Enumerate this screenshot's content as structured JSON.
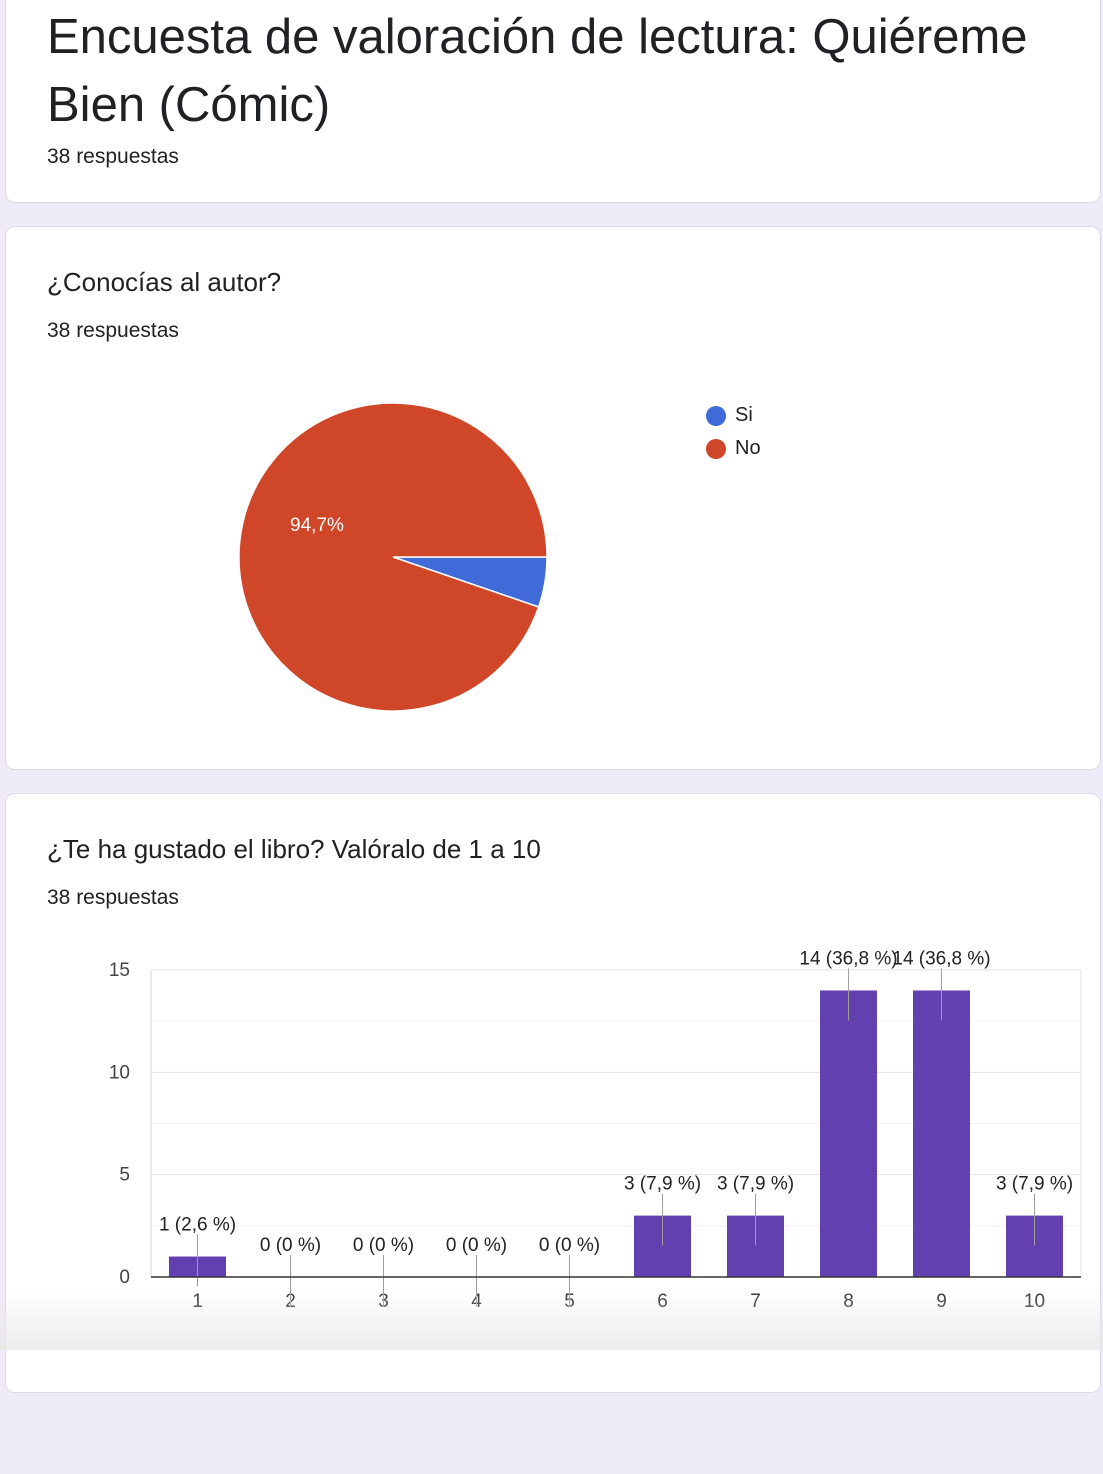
{
  "form": {
    "title": "Encuesta de valoración de lectura: Quiéreme Bien (Cómic)",
    "responses": "38 respuestas"
  },
  "questions": [
    {
      "title": "¿Conocías al autor?",
      "responses": "38 respuestas"
    },
    {
      "title": "¿Te ha gustado el libro? Valóralo de 1 a 10",
      "responses": "38 respuestas"
    }
  ],
  "chart_data": [
    {
      "type": "pie",
      "labels": [
        "Si",
        "No"
      ],
      "values": [
        2,
        36
      ],
      "colors": [
        "#3f6ad8",
        "#cf4628"
      ],
      "slice_labels": [
        "",
        "94,7%"
      ],
      "legend": "right"
    },
    {
      "type": "bar",
      "categories": [
        "1",
        "2",
        "3",
        "4",
        "5",
        "6",
        "7",
        "8",
        "9",
        "10"
      ],
      "values": [
        1,
        0,
        0,
        0,
        0,
        3,
        3,
        14,
        14,
        3
      ],
      "data_labels": [
        "1 (2,6 %)",
        "0 (0 %)",
        "0 (0 %)",
        "0 (0 %)",
        "0 (0 %)",
        "3 (7,9 %)",
        "3 (7,9 %)",
        "14 (36,8 %)",
        "14 (36,8 %)",
        "3 (7,9 %)"
      ],
      "color": "#6340b0",
      "yticks": [
        "0",
        "5",
        "10",
        "15"
      ],
      "ylim": [
        0,
        15
      ],
      "grid": true
    }
  ]
}
